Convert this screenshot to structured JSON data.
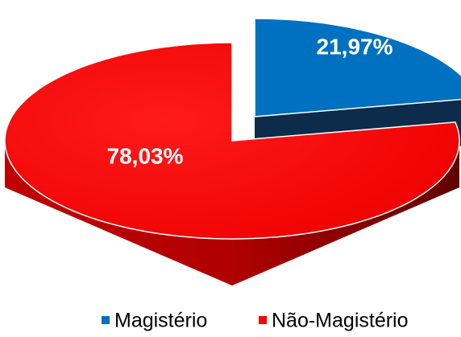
{
  "chart_data": {
    "type": "pie",
    "categories": [
      "Magistério",
      "Não-Magistério"
    ],
    "values": [
      21.97,
      78.03
    ],
    "value_labels": [
      "21,97%",
      "78,03%"
    ],
    "colors": [
      "#0070c0",
      "#ff0000"
    ],
    "legend": "bottom"
  }
}
